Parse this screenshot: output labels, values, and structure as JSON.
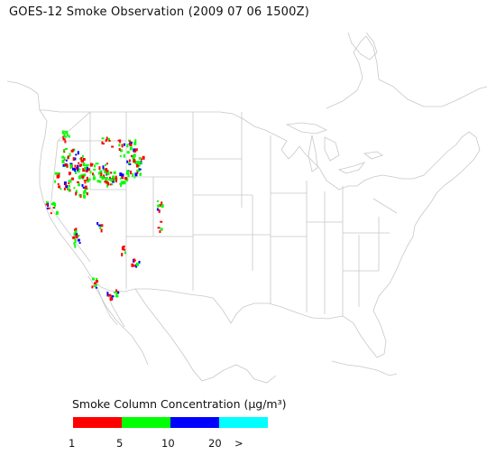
{
  "title": "GOES-12 Smoke Observation (2009 07 06  1500Z)",
  "legend": {
    "label": "Smoke Column Concentration (μg/m³)",
    "classes": [
      {
        "color": "#ff0000",
        "from": 1,
        "to": 5
      },
      {
        "color": "#00ff00",
        "from": 5,
        "to": 10
      },
      {
        "color": "#0000ff",
        "from": 10,
        "to": 20
      },
      {
        "color": "#00ffff",
        "from": 20,
        "to": null
      }
    ],
    "ticks": [
      "1",
      "5",
      "10",
      "20",
      ">"
    ]
  },
  "colors": {
    "boundary": "#c8c8c8",
    "low": "#ff0000",
    "mid": "#00ff00",
    "high": "#0000ff",
    "very_high": "#00ffff"
  }
}
